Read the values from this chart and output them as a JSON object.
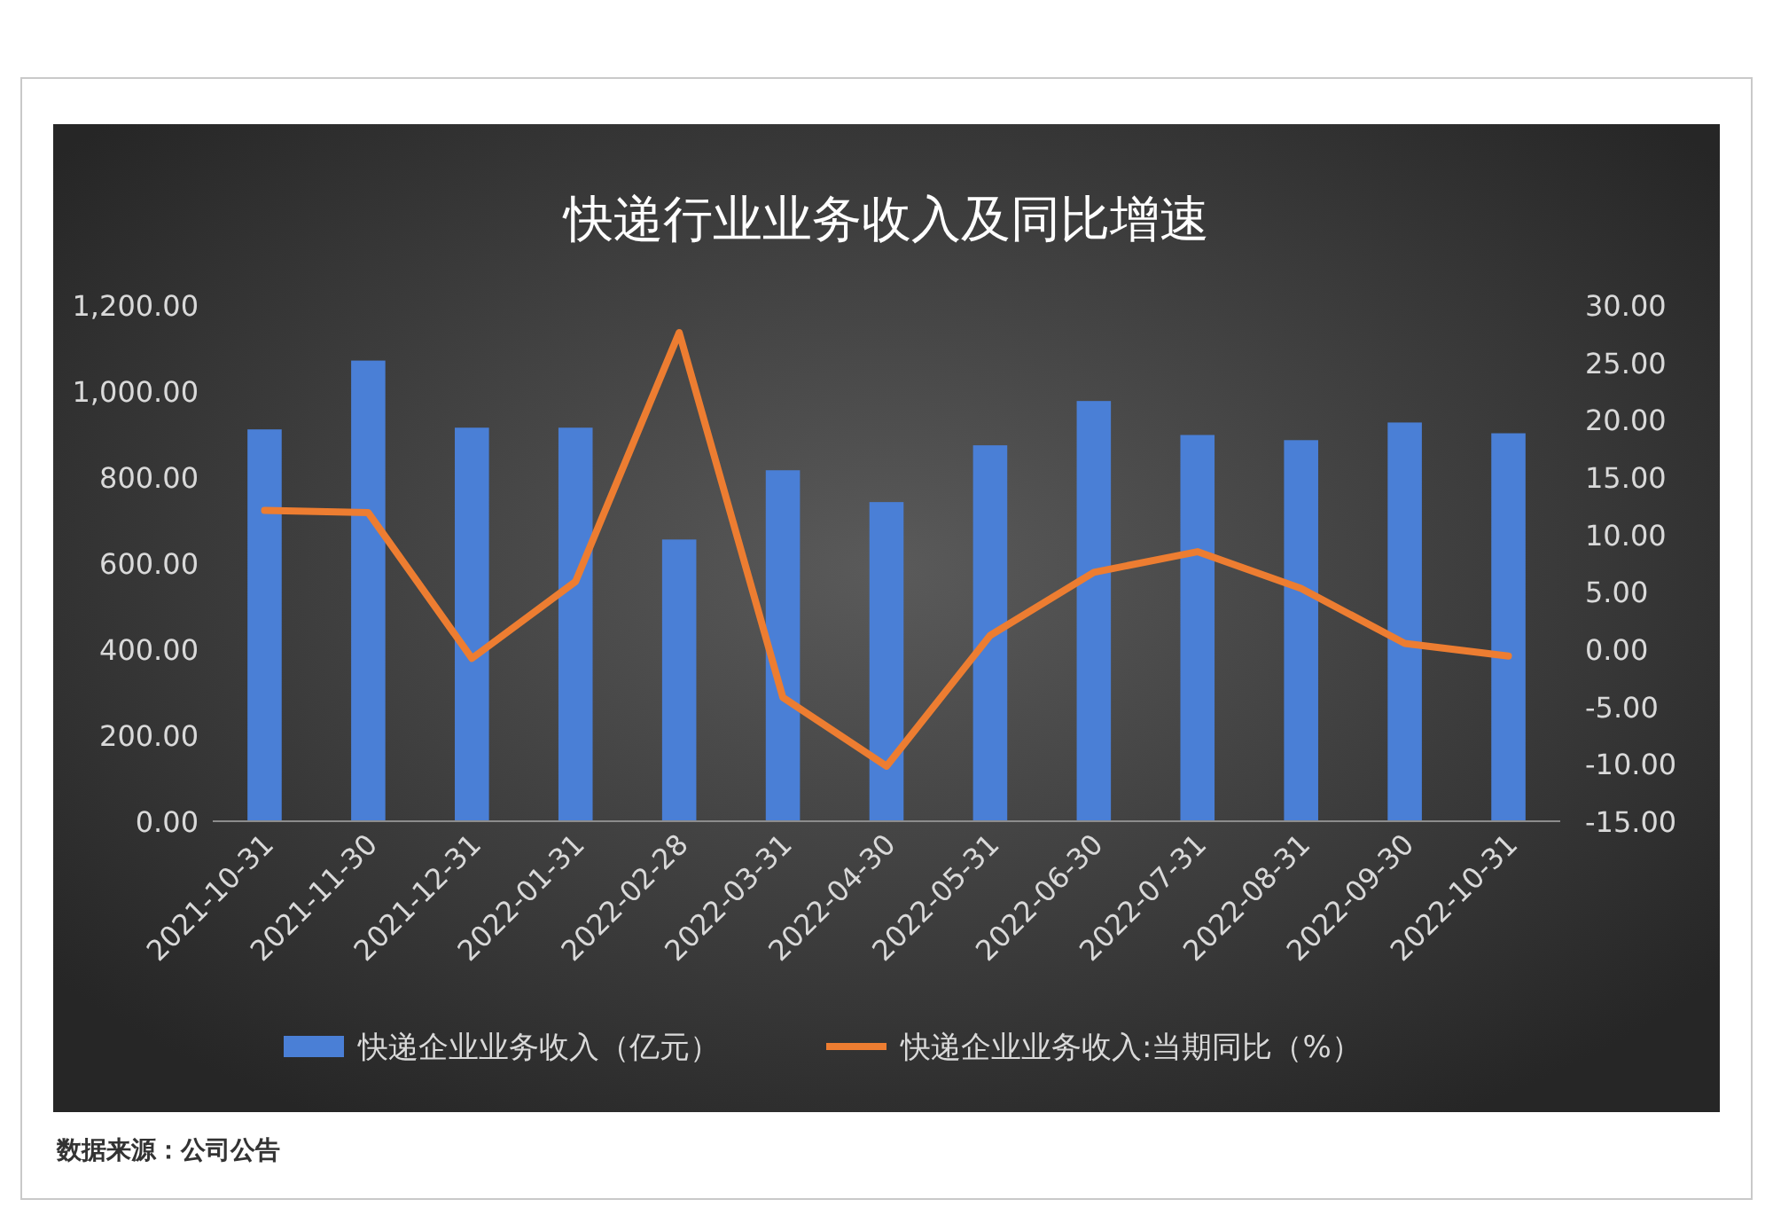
{
  "chart_data": {
    "type": "bar",
    "title": "快递行业业务收入及同比增速",
    "categories": [
      "2021-10-31",
      "2021-11-30",
      "2021-12-31",
      "2022-01-31",
      "2022-02-28",
      "2022-03-31",
      "2022-04-30",
      "2022-05-31",
      "2022-06-30",
      "2022-07-31",
      "2022-08-31",
      "2022-09-30",
      "2022-10-31"
    ],
    "series": [
      {
        "name": "快递企业业务收入（亿元）",
        "color": "#4a7fd6",
        "values": [
          911,
          1071,
          915,
          915,
          655,
          816,
          742,
          874,
          977,
          898,
          886,
          927,
          902
        ]
      },
      {
        "name": "快递企业业务收入:当期同比（%）",
        "type": "line",
        "axis": "y2",
        "color": "#ed7d31",
        "values": [
          12.1,
          11.9,
          -0.8,
          5.9,
          27.6,
          -4.2,
          -10.2,
          1.2,
          6.7,
          8.5,
          5.3,
          0.5,
          -0.6
        ]
      }
    ],
    "ylim": [
      0,
      1200
    ],
    "yticks": [
      {
        "value": 0,
        "label": "0.00"
      },
      {
        "value": 200,
        "label": "200.00"
      },
      {
        "value": 400,
        "label": "400.00"
      },
      {
        "value": 600,
        "label": "600.00"
      },
      {
        "value": 800,
        "label": "800.00"
      },
      {
        "value": 1000,
        "label": "1,000.00"
      },
      {
        "value": 1200,
        "label": "1,200.00"
      }
    ],
    "y2lim": [
      -15,
      30
    ],
    "y2ticks": [
      {
        "value": -15,
        "label": "-15.00"
      },
      {
        "value": -10,
        "label": "-10.00"
      },
      {
        "value": -5,
        "label": "-5.00"
      },
      {
        "value": 0,
        "label": "0.00"
      },
      {
        "value": 5,
        "label": "5.00"
      },
      {
        "value": 10,
        "label": "10.00"
      },
      {
        "value": 15,
        "label": "15.00"
      },
      {
        "value": 20,
        "label": "20.00"
      },
      {
        "value": 25,
        "label": "25.00"
      },
      {
        "value": 30,
        "label": "30.00"
      }
    ],
    "legend": "bottom",
    "annotations": [
      "数据来源：公司公告"
    ]
  }
}
